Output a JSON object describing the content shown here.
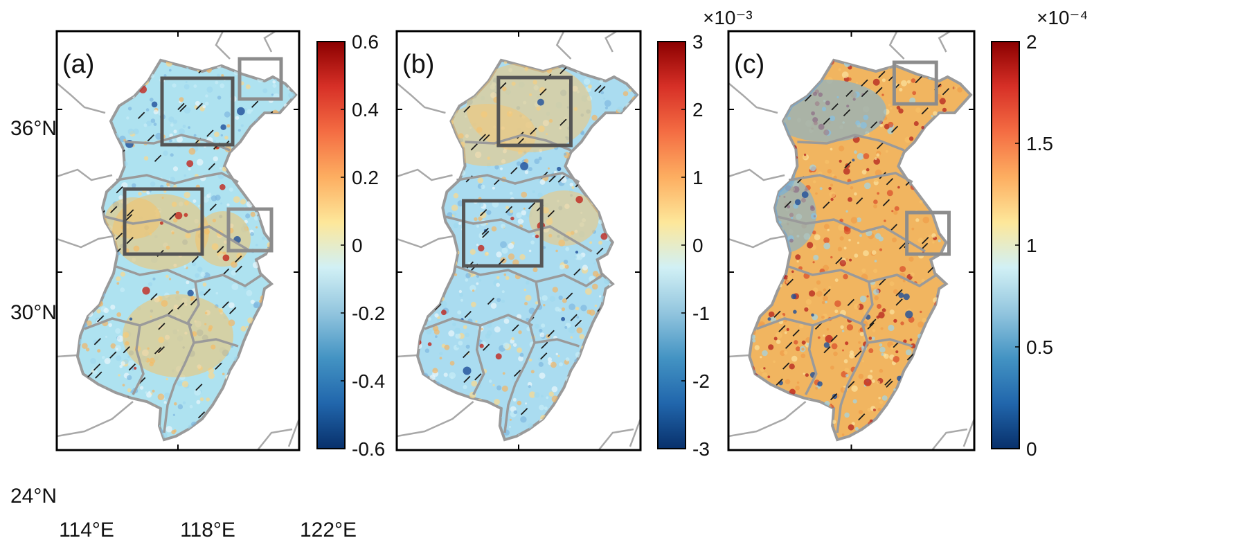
{
  "figure": {
    "panels": [
      {
        "label": "(a)",
        "colorbar": {
          "ticks": [
            "0.6",
            "0.4",
            "0.2",
            "0",
            "-0.2",
            "-0.4",
            "-0.6"
          ],
          "multiplier": ""
        },
        "base_color": "#aee2f0",
        "patch_color": "#f4c36a",
        "boxes": [
          "north-central",
          "shandong-peninsula",
          "central-west",
          "yangtze-delta"
        ]
      },
      {
        "label": "(b)",
        "colorbar": {
          "ticks": [
            "3",
            "2",
            "1",
            "0",
            "-1",
            "-2",
            "-3"
          ],
          "multiplier": "×10⁻³"
        },
        "base_color": "#aadcf0",
        "patch_color": "#f2c777",
        "boxes": [
          "north-central",
          "central-west"
        ]
      },
      {
        "label": "(c)",
        "colorbar": {
          "ticks": [
            "2",
            "1.5",
            "1",
            "0.5",
            "0"
          ],
          "multiplier": "×10⁻⁴"
        },
        "base_color": "#f1b560",
        "patch_color": "#6fb0e0",
        "boxes": [
          "shandong-peninsula",
          "yangtze-delta"
        ]
      }
    ],
    "axes": {
      "y_ticks": [
        "36°N",
        "30°N",
        "24°N"
      ],
      "x_ticks": [
        "114°E",
        "118°E",
        "122°E"
      ]
    },
    "colormap": [
      "#08306b",
      "#2166ac",
      "#4393c3",
      "#92c5de",
      "#d1f0f5",
      "#fde79a",
      "#fdae61",
      "#f46d43",
      "#d73027",
      "#8b0000"
    ],
    "colors": {
      "border_gray": "#9a9a9a",
      "box_dark": "#555555",
      "box_light": "#8c8c8c"
    }
  }
}
